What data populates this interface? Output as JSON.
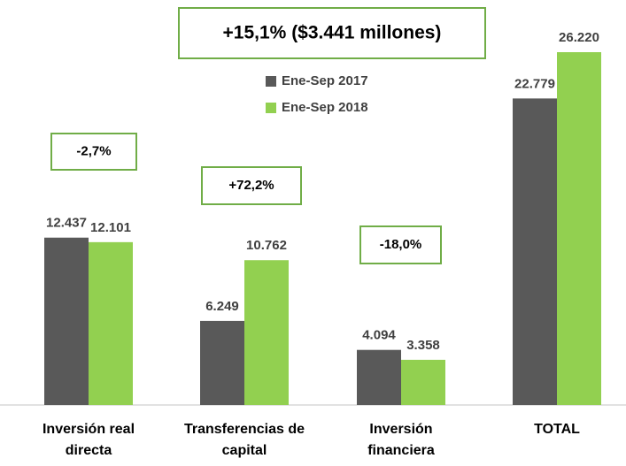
{
  "chart_data": {
    "type": "bar",
    "title": "+15,1% ($3.441 millones)",
    "categories": [
      "Inversión real directa",
      "Transferencias de capital",
      "Inversión financiera",
      "TOTAL"
    ],
    "series": [
      {
        "name": "Ene-Sep 2017",
        "color": "#595959",
        "values": [
          12437,
          6249,
          4094,
          22779
        ],
        "value_labels": [
          "12.437",
          "6.249",
          "4.094",
          "22.779"
        ]
      },
      {
        "name": "Ene-Sep 2018",
        "color": "#92d050",
        "values": [
          12101,
          10762,
          3358,
          26220
        ],
        "value_labels": [
          "12.101",
          "10.762",
          "3.358",
          "26.220"
        ]
      }
    ],
    "annotations": [
      "-2,7%",
      "+72,2%",
      "-18,0%"
    ]
  }
}
